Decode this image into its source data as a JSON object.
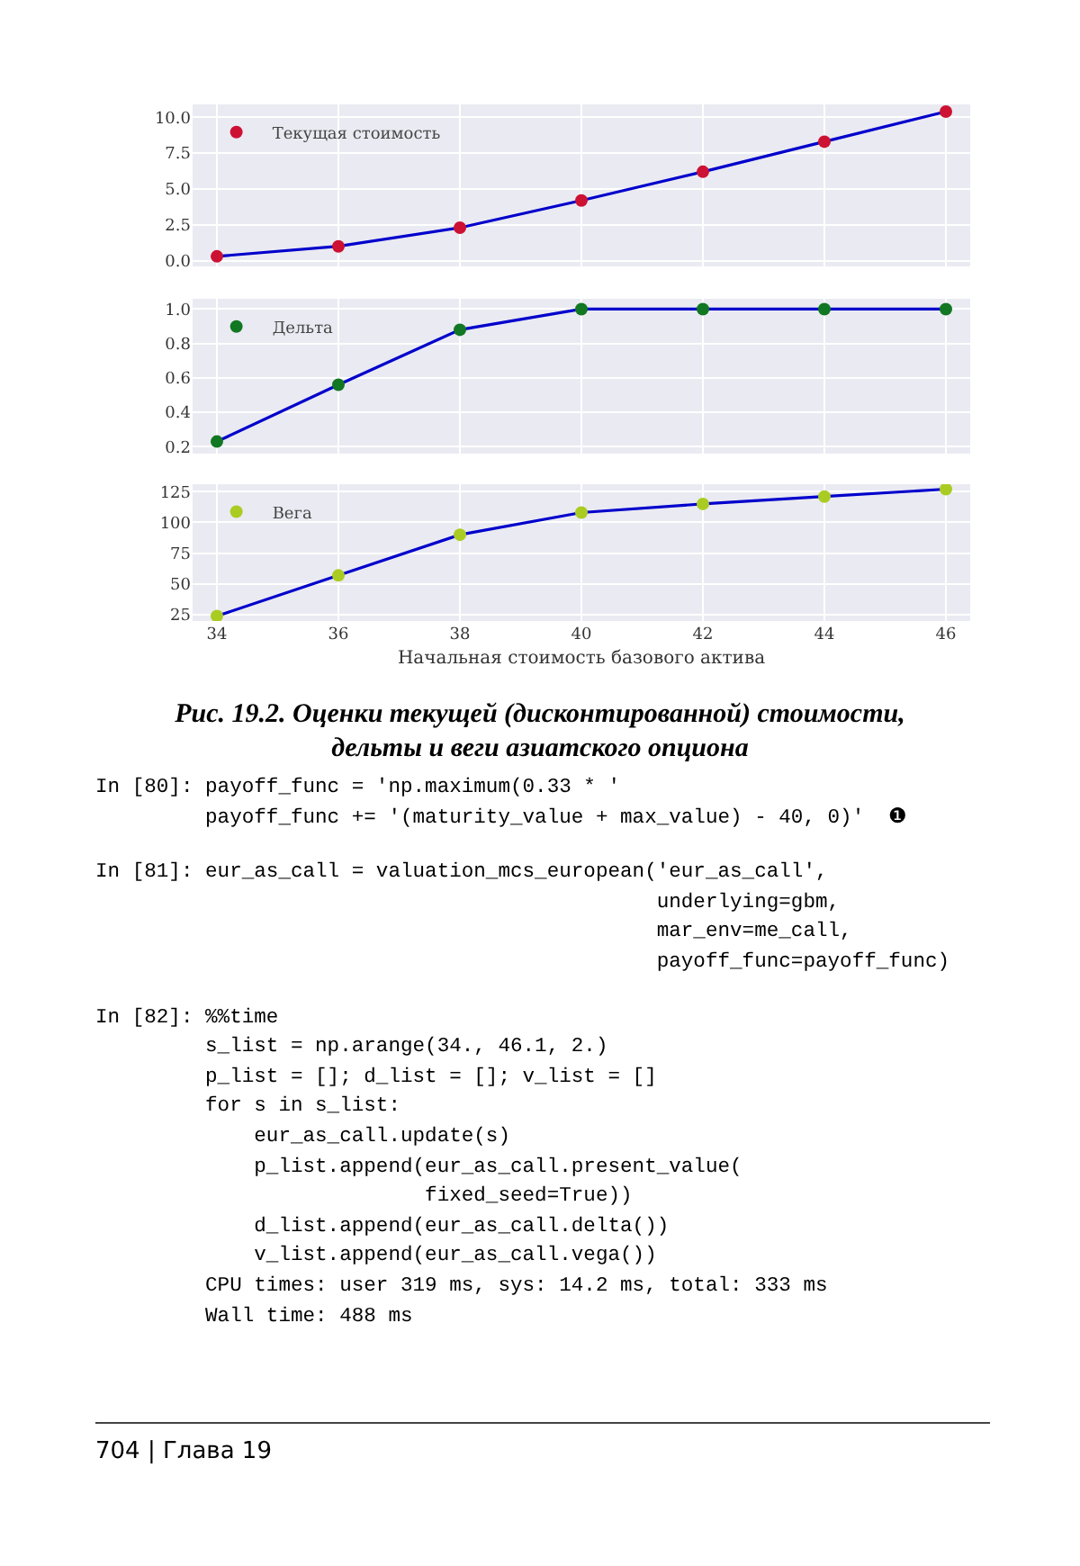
{
  "chart_data": [
    {
      "type": "line",
      "x": [
        34,
        36,
        38,
        40,
        42,
        44,
        46
      ],
      "xlim": [
        33.6,
        46.4
      ],
      "xticks": [
        34,
        36,
        38,
        40,
        42,
        44,
        46
      ],
      "ylim": [
        -0.4,
        10.9
      ],
      "yticks": [
        {
          "value": 0,
          "label": "0.0"
        },
        2.5,
        {
          "value": 5,
          "label": "5.0"
        },
        7.5,
        {
          "value": 10,
          "label": "10.0"
        }
      ],
      "tick_labels": "y",
      "grid": true,
      "legend": "top left",
      "series": [
        {
          "color": "#0000cc",
          "marker": "none",
          "values": [
            0.3,
            1.0,
            2.3,
            4.2,
            6.2,
            8.3,
            10.4
          ]
        },
        {
          "type": "scatter",
          "name": "Текущая стоимость",
          "color": "#cc1133",
          "marker": "circle",
          "values": [
            0.3,
            1.0,
            2.3,
            4.2,
            6.2,
            8.3,
            10.4
          ]
        }
      ]
    },
    {
      "type": "line",
      "x": [
        34,
        36,
        38,
        40,
        42,
        44,
        46
      ],
      "xlim": [
        33.6,
        46.4
      ],
      "xticks": [
        34,
        36,
        38,
        40,
        42,
        44,
        46
      ],
      "ylim": [
        0.16,
        1.06
      ],
      "yticks": [
        0.2,
        0.4,
        0.6,
        0.8,
        {
          "value": 1,
          "label": "1.0"
        }
      ],
      "tick_labels": "y",
      "grid": true,
      "legend": "top left",
      "series": [
        {
          "color": "#0000cc",
          "marker": "none",
          "values": [
            0.23,
            0.56,
            0.88,
            1.0,
            1.0,
            1.0,
            1.0
          ]
        },
        {
          "type": "scatter",
          "name": "Дельта",
          "color": "#117722",
          "marker": "circle",
          "values": [
            0.23,
            0.56,
            0.88,
            1.0,
            1.0,
            1.0,
            1.0
          ]
        }
      ]
    },
    {
      "type": "line",
      "x": [
        34,
        36,
        38,
        40,
        42,
        44,
        46
      ],
      "xlim": [
        33.6,
        46.4
      ],
      "xticks": [
        34,
        36,
        38,
        40,
        42,
        44,
        46
      ],
      "ylim": [
        20,
        131
      ],
      "yticks": [
        25,
        50,
        75,
        100,
        125
      ],
      "grid": true,
      "legend": "top left",
      "xlabel": "Начальная стоимость базового актива",
      "series": [
        {
          "color": "#0000cc",
          "marker": "none",
          "values": [
            24,
            57,
            90,
            108,
            115,
            121,
            127
          ]
        },
        {
          "type": "scatter",
          "name": "Вега",
          "color": "#aacc22",
          "marker": "circle",
          "values": [
            24,
            57,
            90,
            108,
            115,
            121,
            127
          ]
        }
      ],
      "annotations": [
        "Рис. 19.2. Оценки текущей (дисконтированной) стоимости, дельты и веги азиатского опциона",
        "In [80]: payoff_func = 'np.maximum(0.33 * '",
        "         payoff_func += '(maturity_value + max_value) - 40, 0)'  ❶",
        "In [81]: eur_as_call = valuation_mcs_european('eur_as_call',",
        "                                              underlying=gbm,",
        "                                              mar_env=me_call,",
        "                                              payoff_func=payoff_func)",
        "In [82]: %%time",
        "         s_list = np.arange(34., 46.1, 2.)",
        "         p_list = []; d_list = []; v_list = []",
        "         for s in s_list:",
        "             eur_as_call.update(s)",
        "             p_list.append(eur_as_call.present_value(",
        "                           fixed_seed=True))",
        "             d_list.append(eur_as_call.delta())",
        "             v_list.append(eur_as_call.vega())",
        "         CPU times: user 319 ms, sys: 14.2 ms, total: 333 ms",
        "         Wall time: 488 ms",
        "704 | Глава 19"
      ]
    }
  ]
}
